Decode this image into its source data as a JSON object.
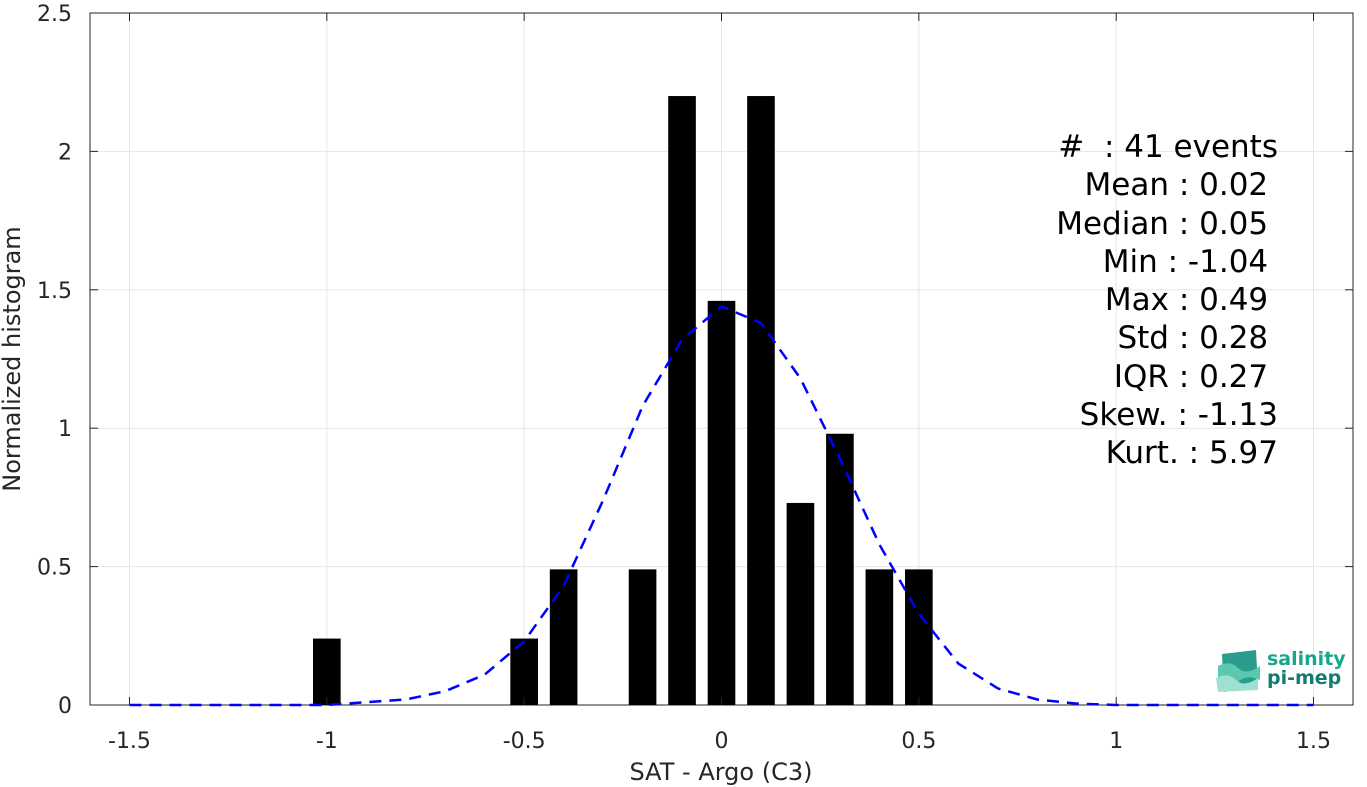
{
  "chart_data": {
    "type": "bar",
    "xlabel": "SAT - Argo (C3)",
    "ylabel": "Normalized histogram",
    "xlim": [
      -1.6,
      1.6
    ],
    "ylim": [
      0,
      2.5
    ],
    "xticks": [
      -1.5,
      -1,
      -0.5,
      0,
      0.5,
      1,
      1.5
    ],
    "xtick_labels": [
      "-1.5",
      "-1",
      "-0.5",
      "0",
      "0.5",
      "1",
      "1.5"
    ],
    "yticks": [
      0,
      0.5,
      1,
      1.5,
      2,
      2.5
    ],
    "ytick_labels": [
      "0",
      "0.5",
      "1",
      "1.5",
      "2",
      "2.5"
    ],
    "grid": true,
    "bar_width": 0.07,
    "bars": {
      "x": [
        -1.0,
        -0.5,
        -0.4,
        -0.2,
        -0.1,
        0.0,
        0.1,
        0.2,
        0.3,
        0.4,
        0.5
      ],
      "values": [
        0.24,
        0.24,
        0.49,
        0.49,
        2.2,
        1.46,
        2.2,
        0.73,
        0.98,
        0.49,
        0.49
      ],
      "color": "#000000"
    },
    "fit_curve": {
      "style": "dashed",
      "color": "#0000ff",
      "x": [
        -1.5,
        -1.0,
        -0.9,
        -0.8,
        -0.7,
        -0.6,
        -0.5,
        -0.4,
        -0.3,
        -0.2,
        -0.1,
        0.0,
        0.1,
        0.2,
        0.3,
        0.4,
        0.5,
        0.6,
        0.7,
        0.8,
        0.9,
        1.0,
        1.5
      ],
      "y": [
        0.0,
        0.0,
        0.01,
        0.02,
        0.05,
        0.11,
        0.23,
        0.43,
        0.74,
        1.08,
        1.32,
        1.44,
        1.38,
        1.18,
        0.89,
        0.58,
        0.33,
        0.15,
        0.06,
        0.02,
        0.005,
        0.0,
        0.0
      ]
    }
  },
  "stats": [
    "#  : 41 events",
    "Mean : 0.02 ",
    "Median : 0.05 ",
    "Min : -1.04 ",
    "Max : 0.49 ",
    "Std : 0.28 ",
    "IQR : 0.27 ",
    "Skew. : -1.13",
    "Kurt. : 5.97"
  ],
  "logo": {
    "line1": "salinity",
    "line2": "pi-mep"
  }
}
